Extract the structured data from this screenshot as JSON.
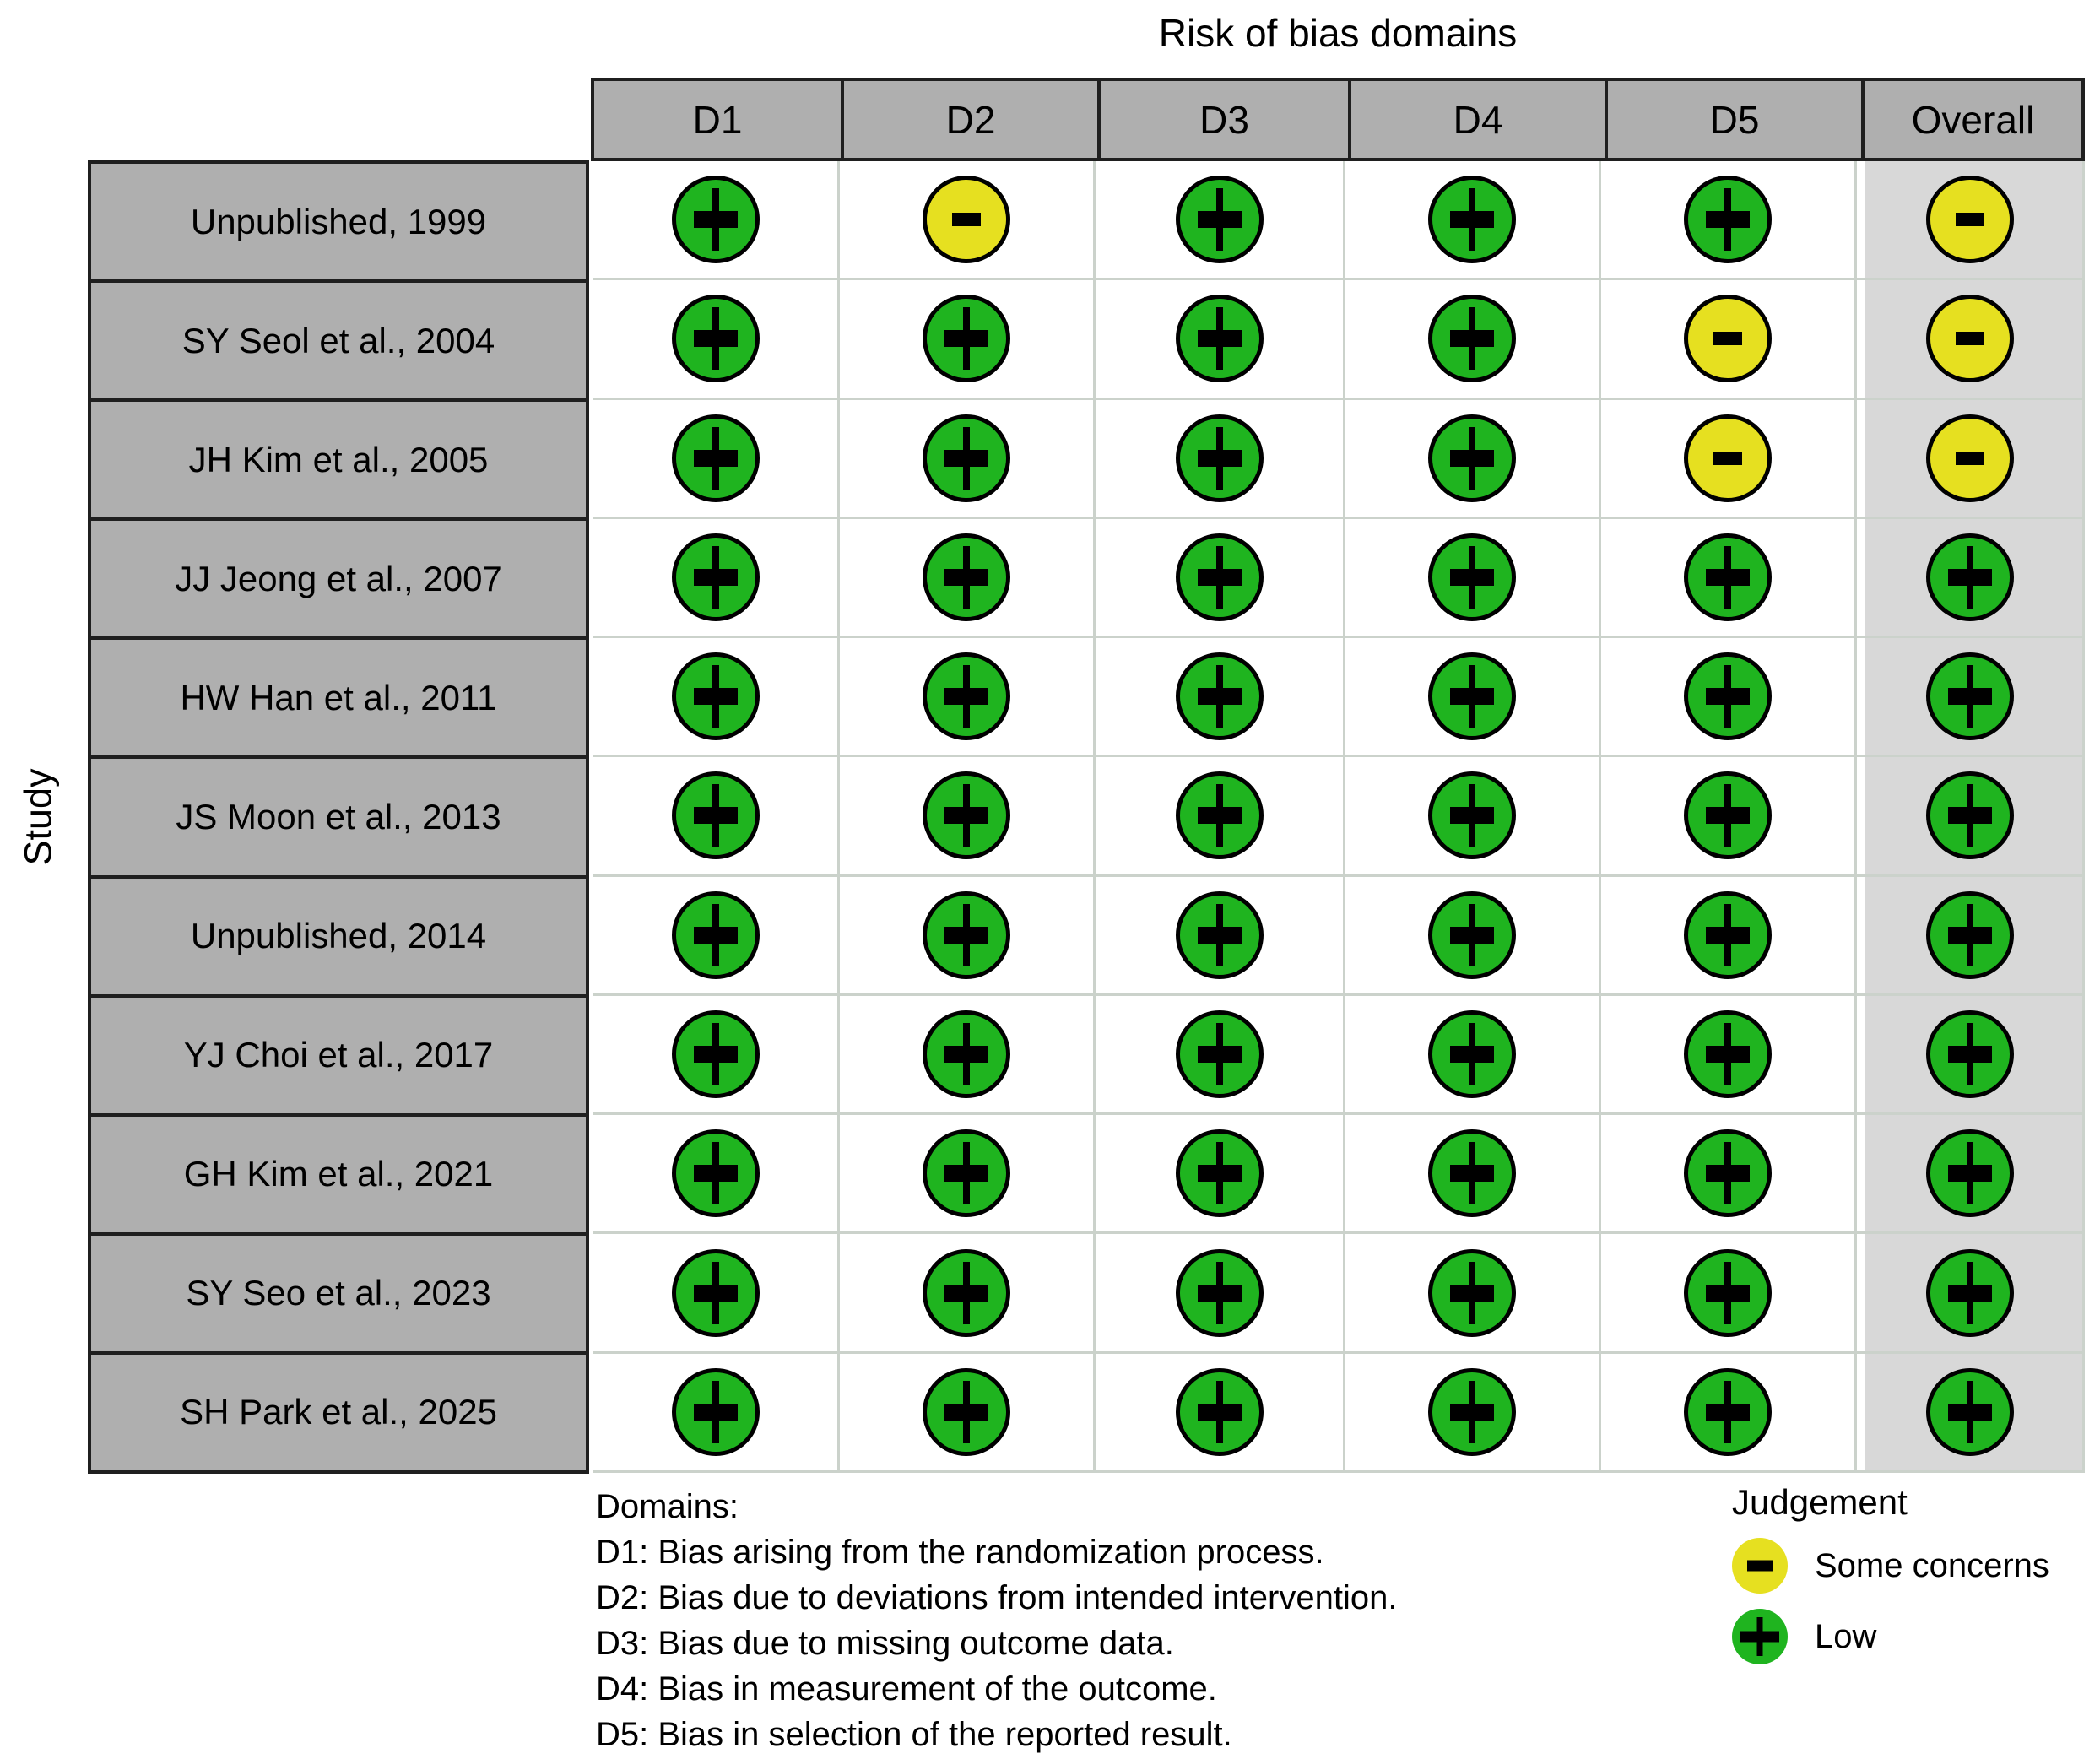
{
  "title": "Risk of bias domains",
  "y_axis_label": "Study",
  "columns": [
    "D1",
    "D2",
    "D3",
    "D4",
    "D5",
    "Overall"
  ],
  "studies": [
    "Unpublished, 1999",
    "SY Seol et al., 2004",
    "JH Kim et al., 2005",
    "JJ Jeong et al., 2007",
    "HW Han et al., 2011",
    "JS Moon et al., 2013",
    "Unpublished, 2014",
    "YJ Choi et al., 2017",
    "GH Kim et al., 2021",
    "SY Seo et al., 2023",
    "SH Park et al., 2025"
  ],
  "ratings": [
    [
      "low",
      "some-concerns",
      "low",
      "low",
      "low",
      "some-concerns"
    ],
    [
      "low",
      "low",
      "low",
      "low",
      "some-concerns",
      "some-concerns"
    ],
    [
      "low",
      "low",
      "low",
      "low",
      "some-concerns",
      "some-concerns"
    ],
    [
      "low",
      "low",
      "low",
      "low",
      "low",
      "low"
    ],
    [
      "low",
      "low",
      "low",
      "low",
      "low",
      "low"
    ],
    [
      "low",
      "low",
      "low",
      "low",
      "low",
      "low"
    ],
    [
      "low",
      "low",
      "low",
      "low",
      "low",
      "low"
    ],
    [
      "low",
      "low",
      "low",
      "low",
      "low",
      "low"
    ],
    [
      "low",
      "low",
      "low",
      "low",
      "low",
      "low"
    ],
    [
      "low",
      "low",
      "low",
      "low",
      "low",
      "low"
    ],
    [
      "low",
      "low",
      "low",
      "low",
      "low",
      "low"
    ]
  ],
  "symbols": {
    "low": "+",
    "some-concerns": "-"
  },
  "footnotes": {
    "heading": "Domains:",
    "items": [
      "D1: Bias arising from the randomization process.",
      "D2: Bias due to deviations from intended intervention.",
      "D3: Bias due to missing outcome data.",
      "D4: Bias in measurement of the outcome.",
      "D5: Bias in selection of the reported result."
    ]
  },
  "legend": {
    "title": "Judgement",
    "items": [
      {
        "key": "some-concerns",
        "symbol": "-",
        "label": "Some concerns"
      },
      {
        "key": "low",
        "symbol": "+",
        "label": "Low"
      }
    ]
  },
  "colors": {
    "low": "#1FB41F",
    "some_concerns": "#E6E020",
    "header_bg": "#AFAFAF",
    "label_bg": "#AFAFAF",
    "overall_bg": "#D8D8D8",
    "grid_line": "#CBD2CB",
    "table_border": "#1F1F1F"
  },
  "chart_data": {
    "type": "heatmap",
    "title": "Risk of bias domains",
    "xlabel": "",
    "ylabel": "Study",
    "x_categories": [
      "D1",
      "D2",
      "D3",
      "D4",
      "D5",
      "Overall"
    ],
    "y_categories": [
      "Unpublished, 1999",
      "SY Seol et al., 2004",
      "JH Kim et al., 2005",
      "JJ Jeong et al., 2007",
      "HW Han et al., 2011",
      "JS Moon et al., 2013",
      "Unpublished, 2014",
      "YJ Choi et al., 2017",
      "GH Kim et al., 2021",
      "SY Seo et al., 2023",
      "SH Park et al., 2025"
    ],
    "values": [
      [
        "Low",
        "Some concerns",
        "Low",
        "Low",
        "Low",
        "Some concerns"
      ],
      [
        "Low",
        "Low",
        "Low",
        "Low",
        "Some concerns",
        "Some concerns"
      ],
      [
        "Low",
        "Low",
        "Low",
        "Low",
        "Some concerns",
        "Some concerns"
      ],
      [
        "Low",
        "Low",
        "Low",
        "Low",
        "Low",
        "Low"
      ],
      [
        "Low",
        "Low",
        "Low",
        "Low",
        "Low",
        "Low"
      ],
      [
        "Low",
        "Low",
        "Low",
        "Low",
        "Low",
        "Low"
      ],
      [
        "Low",
        "Low",
        "Low",
        "Low",
        "Low",
        "Low"
      ],
      [
        "Low",
        "Low",
        "Low",
        "Low",
        "Low",
        "Low"
      ],
      [
        "Low",
        "Low",
        "Low",
        "Low",
        "Low",
        "Low"
      ],
      [
        "Low",
        "Low",
        "Low",
        "Low",
        "Low",
        "Low"
      ],
      [
        "Low",
        "Low",
        "Low",
        "Low",
        "Low",
        "Low"
      ]
    ],
    "legend_position": "bottom-right",
    "legend_title": "Judgement",
    "legend_entries": [
      "Some concerns",
      "Low"
    ],
    "grid": true
  }
}
